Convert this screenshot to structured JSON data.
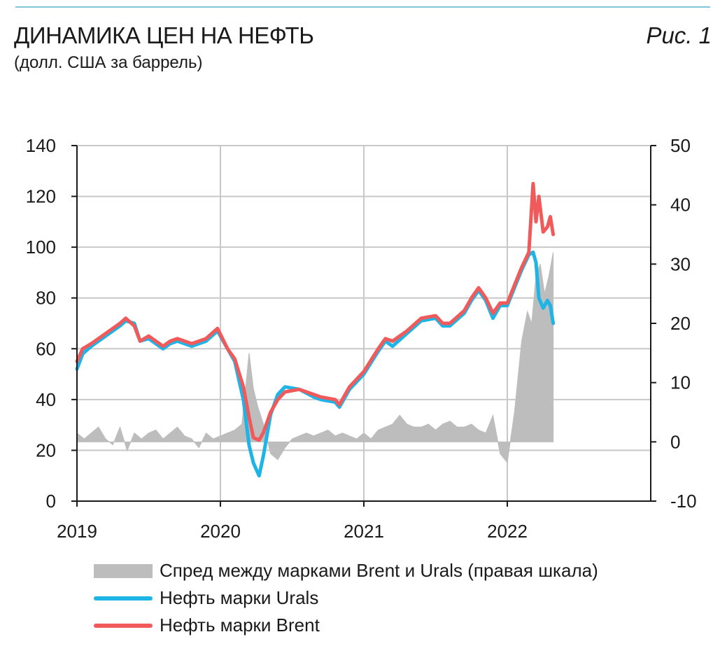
{
  "header": {
    "title": "ДИНАМИКА ЦЕН НА НЕФТЬ",
    "subtitle": "(долл. США за баррель)",
    "figure_label": "Рис. 1"
  },
  "colors": {
    "spread": "#bdbdbd",
    "urals": "#1eb4e6",
    "brent": "#f05a5a",
    "grid": "#c8c8c8",
    "axis": "#1a1a1a",
    "accent_line": "#7ec8d8"
  },
  "legend": [
    {
      "label": "Спред между марками Brent и Urals (правая шкала)",
      "color": "#bdbdbd",
      "kind": "area"
    },
    {
      "label": "Нефть марки Urals",
      "color": "#1eb4e6",
      "kind": "line"
    },
    {
      "label": "Нефть марки Brent",
      "color": "#f05a5a",
      "kind": "line"
    }
  ],
  "chart_data": {
    "type": "line",
    "x_range": [
      2019.0,
      2023.0
    ],
    "x_ticks": [
      "2019",
      "2020",
      "2021",
      "2022"
    ],
    "y_left": {
      "min": 0,
      "max": 140,
      "ticks": [
        0,
        20,
        40,
        60,
        80,
        100,
        120,
        140
      ]
    },
    "y_right": {
      "min": -10,
      "max": 50,
      "ticks": [
        -10,
        0,
        10,
        20,
        30,
        40,
        50
      ]
    },
    "grid": "vertical at years, horizontal at left ticks",
    "legend_position": "bottom",
    "series": [
      {
        "name": "Нефть марки Brent",
        "axis": "left",
        "x": [
          2019.0,
          2019.04,
          2019.1,
          2019.2,
          2019.3,
          2019.34,
          2019.4,
          2019.44,
          2019.5,
          2019.6,
          2019.65,
          2019.7,
          2019.8,
          2019.9,
          2019.98,
          2020.05,
          2020.1,
          2020.16,
          2020.2,
          2020.23,
          2020.27,
          2020.3,
          2020.35,
          2020.4,
          2020.45,
          2020.55,
          2020.65,
          2020.7,
          2020.8,
          2020.83,
          2020.9,
          2021.0,
          2021.1,
          2021.15,
          2021.2,
          2021.3,
          2021.4,
          2021.5,
          2021.55,
          2021.6,
          2021.7,
          2021.75,
          2021.8,
          2021.85,
          2021.9,
          2021.95,
          2022.0,
          2022.05,
          2022.1,
          2022.15,
          2022.18,
          2022.2,
          2022.22,
          2022.25,
          2022.28,
          2022.3,
          2022.32
        ],
        "y": [
          55,
          60,
          62,
          66,
          70,
          72,
          69,
          63,
          65,
          61,
          63,
          64,
          62,
          64,
          68,
          60,
          56,
          45,
          33,
          25,
          24,
          27,
          35,
          40,
          43,
          44,
          42,
          41,
          40,
          38,
          45,
          51,
          60,
          64,
          63,
          67,
          72,
          73,
          70,
          70,
          75,
          80,
          84,
          80,
          74,
          78,
          78,
          85,
          92,
          98,
          125,
          110,
          120,
          106,
          108,
          112,
          105
        ]
      },
      {
        "name": "Нефть марки Urals",
        "axis": "left",
        "x": [
          2019.0,
          2019.04,
          2019.1,
          2019.2,
          2019.3,
          2019.34,
          2019.4,
          2019.44,
          2019.5,
          2019.6,
          2019.65,
          2019.7,
          2019.8,
          2019.9,
          2019.98,
          2020.05,
          2020.1,
          2020.16,
          2020.2,
          2020.23,
          2020.27,
          2020.3,
          2020.35,
          2020.4,
          2020.45,
          2020.55,
          2020.65,
          2020.7,
          2020.8,
          2020.83,
          2020.9,
          2021.0,
          2021.1,
          2021.15,
          2021.2,
          2021.3,
          2021.4,
          2021.5,
          2021.55,
          2021.6,
          2021.7,
          2021.75,
          2021.8,
          2021.85,
          2021.9,
          2021.95,
          2022.0,
          2022.05,
          2022.1,
          2022.15,
          2022.18,
          2022.2,
          2022.22,
          2022.25,
          2022.28,
          2022.3,
          2022.32
        ],
        "y": [
          52,
          58,
          61,
          65,
          69,
          71,
          70,
          63,
          64,
          60,
          62,
          63,
          61,
          63,
          67,
          60,
          55,
          40,
          22,
          15,
          10,
          18,
          34,
          42,
          45,
          44,
          41,
          40,
          39,
          37,
          44,
          50,
          59,
          63,
          61,
          66,
          71,
          72,
          69,
          69,
          74,
          79,
          83,
          79,
          72,
          77,
          77,
          84,
          91,
          97,
          98,
          94,
          80,
          76,
          79,
          77,
          70
        ]
      },
      {
        "name": "Спред между марками Brent и Urals (правая шкала)",
        "axis": "right",
        "x": [
          2019.0,
          2019.05,
          2019.1,
          2019.15,
          2019.2,
          2019.25,
          2019.3,
          2019.35,
          2019.4,
          2019.45,
          2019.5,
          2019.55,
          2019.6,
          2019.65,
          2019.7,
          2019.75,
          2019.8,
          2019.85,
          2019.9,
          2019.95,
          2020.0,
          2020.05,
          2020.1,
          2020.15,
          2020.2,
          2020.23,
          2020.26,
          2020.3,
          2020.35,
          2020.4,
          2020.45,
          2020.5,
          2020.55,
          2020.6,
          2020.65,
          2020.7,
          2020.75,
          2020.8,
          2020.85,
          2020.9,
          2020.95,
          2021.0,
          2021.05,
          2021.1,
          2021.15,
          2021.2,
          2021.25,
          2021.3,
          2021.35,
          2021.4,
          2021.45,
          2021.5,
          2021.55,
          2021.6,
          2021.65,
          2021.7,
          2021.75,
          2021.8,
          2021.85,
          2021.9,
          2021.95,
          2022.0,
          2022.05,
          2022.1,
          2022.14,
          2022.17,
          2022.2,
          2022.23,
          2022.26,
          2022.29,
          2022.32
        ],
        "y": [
          1.5,
          0.5,
          1.5,
          2.5,
          0.5,
          -0.5,
          2.5,
          -1.5,
          1.5,
          0.5,
          1.5,
          2.0,
          0.5,
          1.5,
          2.5,
          1.0,
          0.5,
          -1.0,
          1.5,
          0.5,
          1.0,
          1.5,
          2.0,
          3.0,
          15.0,
          9.0,
          6.0,
          3.0,
          -2.0,
          -3.0,
          -1.0,
          0.5,
          1.0,
          1.5,
          1.0,
          1.5,
          2.0,
          1.0,
          1.5,
          1.0,
          0.5,
          1.5,
          0.5,
          2.0,
          2.5,
          3.0,
          4.5,
          3.0,
          2.5,
          2.5,
          3.0,
          2.0,
          3.0,
          3.5,
          2.5,
          2.5,
          3.0,
          2.0,
          1.5,
          4.5,
          -2.0,
          -3.5,
          5.0,
          17.0,
          22.0,
          20.0,
          28.0,
          30.0,
          25.0,
          28.0,
          32.0
        ]
      }
    ]
  }
}
